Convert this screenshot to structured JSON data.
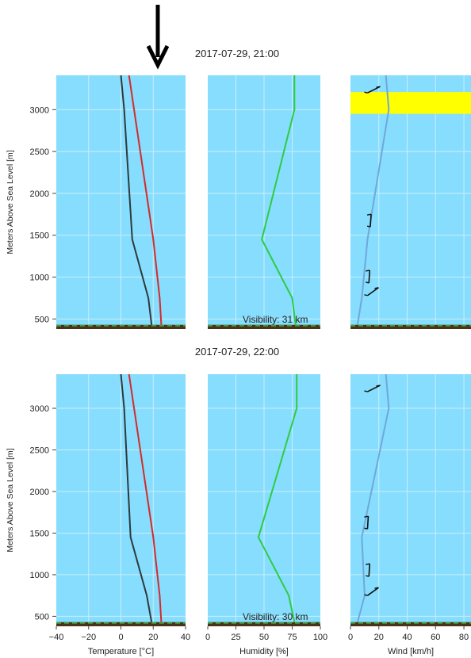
{
  "colors": {
    "sky": "#87DDFD",
    "grid": "#c9eefc",
    "ground": "#4a3318",
    "ground_dash": "#3ea23e",
    "temperature": "#d42a2a",
    "dewpoint": "#2e3a3a",
    "humidity": "#2ecc40",
    "wind_speed": "#6fa8dc",
    "barb": "#111111",
    "highlight": "#ffff00",
    "arrow": "#000000"
  },
  "panels": [
    {
      "timestamp": "2017-07-29, 21:00",
      "visibility": "Visibility: 31 km",
      "highlight_band": [
        2950,
        3210
      ]
    },
    {
      "timestamp": "2017-07-29, 22:00",
      "visibility": "Visibility: 30 km",
      "highlight_band": null
    }
  ],
  "axes": {
    "ylabel": "Meters Above Sea Level [m]",
    "yticks": [
      "500",
      "1000",
      "1500",
      "2000",
      "2500",
      "3000"
    ],
    "temperature_xlabel": "Temperature [°C]",
    "temperature_xticks": [
      "−40",
      "−20",
      "0",
      "20",
      "40"
    ],
    "humidity_xlabel": "Humidity [%]",
    "humidity_xticks": [
      "0",
      "25",
      "50",
      "75",
      "100"
    ],
    "wind_xlabel": "Wind [km/h]",
    "wind_xticks": [
      "0",
      "20",
      "40",
      "60",
      "80"
    ]
  },
  "chart_data": [
    {
      "type": "line",
      "title": "2017-07-29, 21:00",
      "ylabel": "Meters Above Sea Level [m]",
      "ylim": [
        380,
        3410
      ],
      "ground_level": 430,
      "temperature": {
        "xlabel": "Temperature [°C]",
        "xlim": [
          -40,
          40
        ],
        "temperature": {
          "x": [
            25,
            24,
            20,
            5
          ],
          "y": [
            430,
            750,
            1450,
            3410
          ]
        },
        "dewpoint": {
          "x": [
            19,
            17,
            7,
            2,
            0
          ],
          "y": [
            430,
            750,
            1450,
            3000,
            3410
          ]
        }
      },
      "humidity": {
        "xlabel": "Humidity [%]",
        "xlim": [
          0,
          100
        ],
        "values": {
          "x": [
            78,
            75,
            48,
            77,
            77
          ],
          "y": [
            430,
            750,
            1450,
            3000,
            3410
          ]
        }
      },
      "wind": {
        "xlabel": "Wind [km/h]",
        "xlim": [
          0,
          85
        ],
        "speed": {
          "x": [
            5,
            8,
            12,
            27,
            25
          ],
          "y": [
            430,
            750,
            1450,
            3000,
            3410
          ]
        },
        "barbs": [
          {
            "speed": 12,
            "y": 780
          },
          {
            "speed": 13,
            "y": 930
          },
          {
            "speed": 14,
            "y": 1600
          },
          {
            "speed": 12,
            "y": 3200
          }
        ]
      }
    },
    {
      "type": "line",
      "title": "2017-07-29, 22:00",
      "ylabel": "Meters Above Sea Level [m]",
      "ylim": [
        380,
        3410
      ],
      "ground_level": 430,
      "temperature": {
        "xlabel": "Temperature [°C]",
        "xlim": [
          -40,
          40
        ],
        "temperature": {
          "x": [
            25,
            24,
            20,
            5
          ],
          "y": [
            430,
            750,
            1450,
            3410
          ]
        },
        "dewpoint": {
          "x": [
            19,
            16,
            6,
            2,
            0
          ],
          "y": [
            430,
            750,
            1450,
            3000,
            3410
          ]
        }
      },
      "humidity": {
        "xlabel": "Humidity [%]",
        "xlim": [
          0,
          100
        ],
        "values": {
          "x": [
            77,
            72,
            45,
            79,
            79
          ],
          "y": [
            430,
            750,
            1450,
            3000,
            3410
          ]
        }
      },
      "wind": {
        "xlabel": "Wind [km/h]",
        "xlim": [
          0,
          85
        ],
        "speed": {
          "x": [
            5,
            10,
            8,
            27,
            25
          ],
          "y": [
            430,
            750,
            1450,
            3000,
            3410
          ]
        },
        "barbs": [
          {
            "speed": 12,
            "y": 750
          },
          {
            "speed": 13,
            "y": 980
          },
          {
            "speed": 12,
            "y": 1550
          },
          {
            "speed": 12,
            "y": 3200
          }
        ]
      }
    }
  ]
}
